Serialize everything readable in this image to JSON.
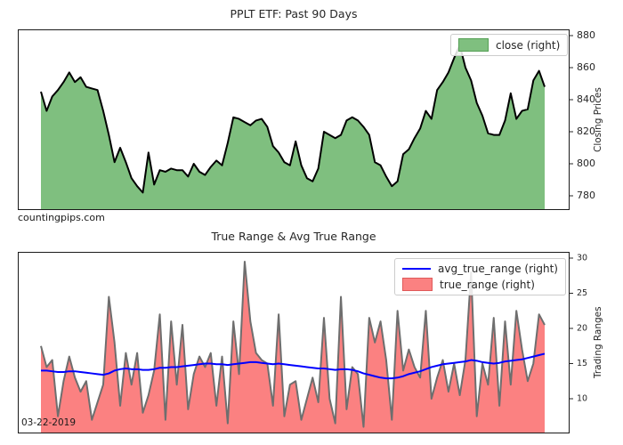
{
  "figure": {
    "watermark": "countingpips.com",
    "date_label": "03-22-2019"
  },
  "chart_data": [
    {
      "type": "area",
      "title": "PPLT ETF: Past 90 Days",
      "ylabel": "Closing Prices",
      "ylabel_side": "right",
      "x_description": "90 consecutive trading days (x-axis unlabeled)",
      "yticks": [
        880,
        860,
        840,
        820,
        800,
        780
      ],
      "ylim": [
        771,
        884
      ],
      "grid": false,
      "legend_position": "upper right",
      "series": [
        {
          "name": "close (right)",
          "style": "area",
          "fill_color": "#7fbf7f",
          "line_color": "#000000",
          "values": [
            845,
            833,
            842,
            846,
            851,
            857,
            851,
            854,
            848,
            847,
            846,
            833,
            818,
            801,
            810,
            801,
            791,
            786,
            782,
            807,
            787,
            796,
            795,
            797,
            796,
            796,
            792,
            800,
            795,
            793,
            798,
            802,
            799,
            813,
            829,
            828,
            826,
            824,
            827,
            828,
            823,
            811,
            807,
            801,
            799,
            814,
            799,
            791,
            789,
            797,
            820,
            818,
            816,
            818,
            827,
            829,
            827,
            823,
            818,
            801,
            799,
            792,
            786,
            789,
            806,
            809,
            816,
            822,
            833,
            828,
            846,
            851,
            857,
            866,
            874,
            860,
            852,
            838,
            830,
            819,
            818,
            818,
            827,
            844,
            828,
            833,
            834,
            852,
            858,
            848
          ]
        }
      ]
    },
    {
      "type": "area+line",
      "title": "True Range & Avg True Range",
      "ylabel": "Trading Ranges",
      "ylabel_side": "right",
      "x_description": "same 90 trading days (x-axis unlabeled)",
      "yticks": [
        30,
        25,
        20,
        15,
        10
      ],
      "ylim": [
        5,
        31
      ],
      "grid": false,
      "legend_position": "upper right",
      "annotation": "03-22-2019",
      "series": [
        {
          "name": "avg_true_range (right)",
          "style": "line",
          "line_color": "#0000ff",
          "values": [
            14.0,
            14.0,
            13.9,
            13.8,
            13.8,
            13.9,
            13.9,
            13.8,
            13.7,
            13.6,
            13.5,
            13.4,
            13.6,
            14.0,
            14.2,
            14.3,
            14.2,
            14.2,
            14.1,
            14.1,
            14.2,
            14.4,
            14.4,
            14.5,
            14.5,
            14.6,
            14.7,
            14.8,
            14.9,
            15.0,
            15.0,
            14.9,
            14.9,
            14.8,
            14.9,
            15.0,
            15.1,
            15.2,
            15.2,
            15.1,
            15.0,
            14.9,
            15.0,
            14.9,
            14.8,
            14.7,
            14.6,
            14.5,
            14.4,
            14.3,
            14.3,
            14.2,
            14.1,
            14.2,
            14.2,
            14.1,
            13.9,
            13.6,
            13.4,
            13.2,
            13.0,
            12.9,
            12.9,
            13.0,
            13.2,
            13.5,
            13.7,
            13.9,
            14.2,
            14.5,
            14.7,
            14.9,
            15.0,
            15.1,
            15.2,
            15.3,
            15.5,
            15.4,
            15.2,
            15.1,
            15.0,
            15.1,
            15.3,
            15.4,
            15.5,
            15.6,
            15.8,
            16.0,
            16.2,
            16.4
          ]
        },
        {
          "name": "true_range (right)",
          "style": "area",
          "fill_color": "#fb8181",
          "line_color": "#6e6e6e",
          "values": [
            17.5,
            14.5,
            15.5,
            7.5,
            12.5,
            16,
            13,
            11,
            12.5,
            7,
            9.5,
            12,
            24.5,
            18,
            9,
            16.5,
            12,
            16.5,
            8,
            10.5,
            14,
            22,
            7,
            21,
            12,
            20.5,
            8.5,
            13.5,
            16,
            14.5,
            16.5,
            9,
            16,
            6.5,
            21,
            13.5,
            29.5,
            21,
            16.5,
            15.5,
            15,
            9,
            22,
            7.5,
            12,
            12.5,
            7,
            10,
            13,
            9.5,
            21.5,
            10,
            6.5,
            24.5,
            8.5,
            14.5,
            13.5,
            6,
            21.5,
            18,
            21,
            15.5,
            7,
            22.5,
            14,
            17,
            14.5,
            13,
            22.5,
            10,
            13,
            15.5,
            11,
            15,
            10.5,
            15.5,
            28,
            7.5,
            15,
            12,
            21.5,
            9,
            21,
            12,
            22.5,
            17,
            12.5,
            15,
            22,
            20.5
          ]
        }
      ]
    }
  ]
}
